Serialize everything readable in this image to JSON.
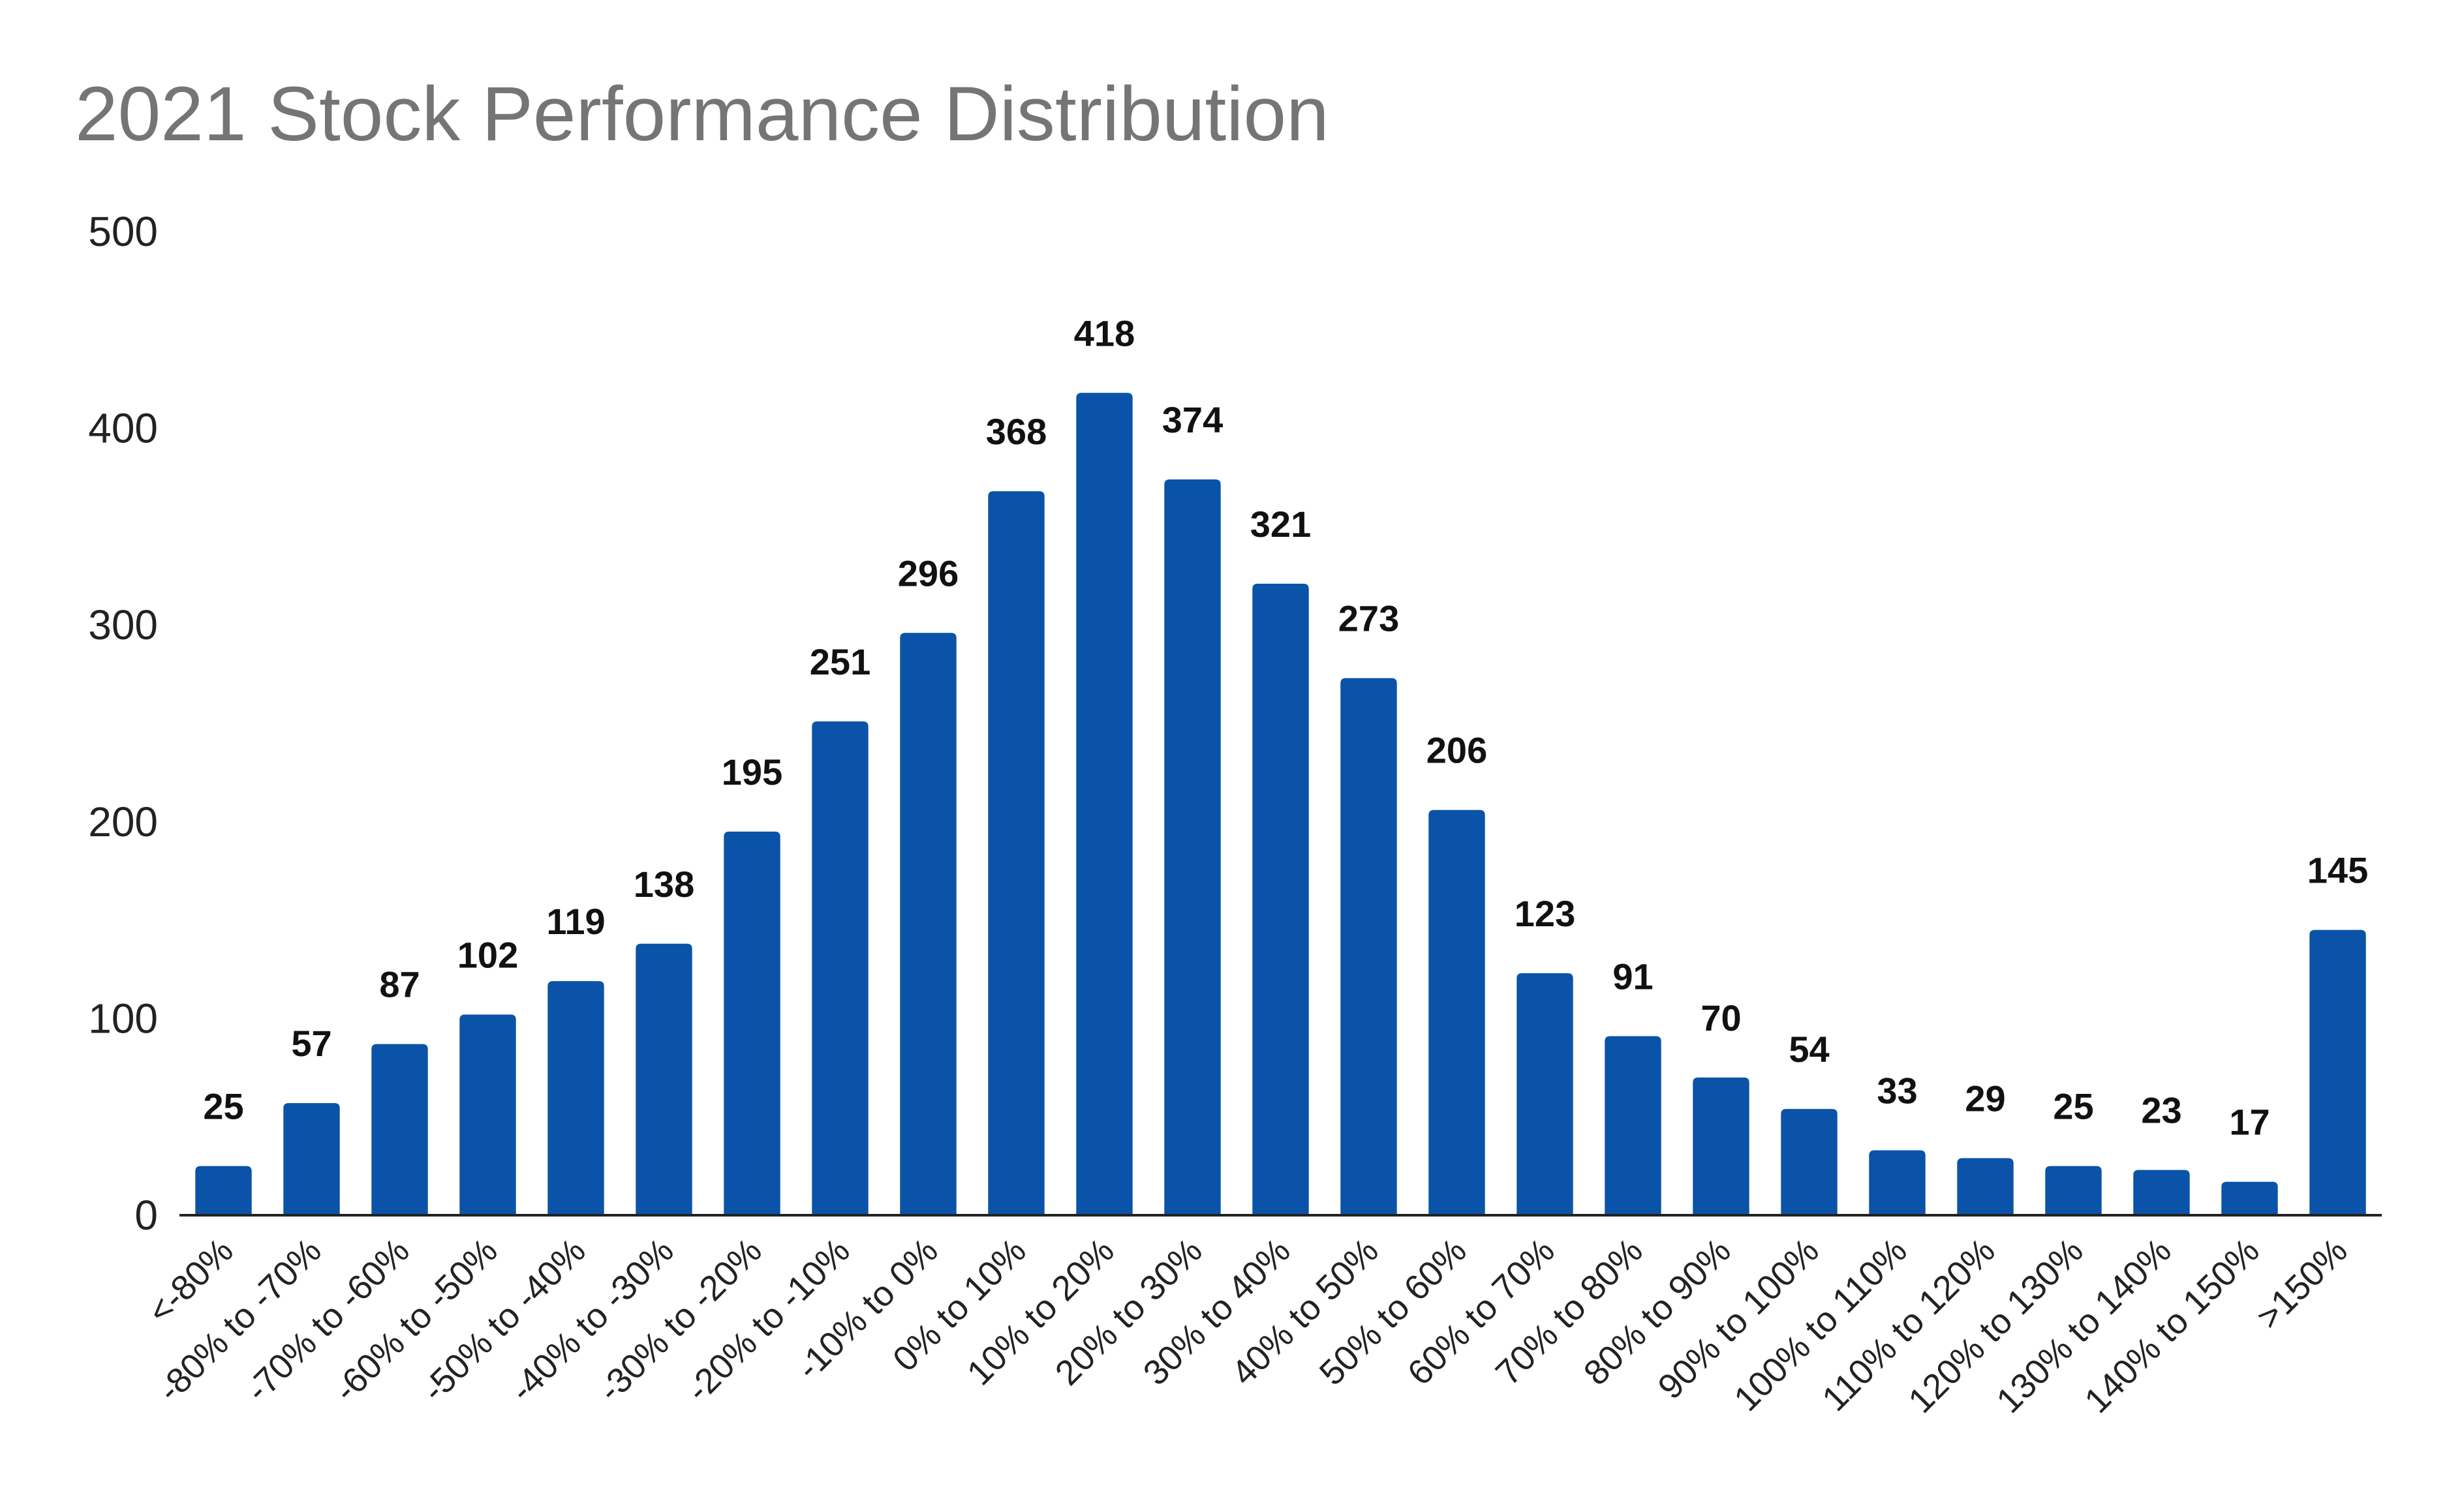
{
  "chart_data": {
    "type": "bar",
    "title": "2021 Stock Performance Distribution",
    "xlabel": "",
    "ylabel": "",
    "ylim": [
      0,
      500
    ],
    "yticks": [
      "0",
      "100",
      "200",
      "300",
      "400",
      "500"
    ],
    "grid": false,
    "legend": "none",
    "bar_color": "#0a53a8",
    "categories": [
      "<-80%",
      "-80% to -70%",
      "-70% to -60%",
      "-60% to -50%",
      "-50% to -40%",
      "-40% to -30%",
      "-30% to -20%",
      "-20% to -10%",
      "-10% to 0%",
      "0% to 10%",
      "10% to 20%",
      "20% to 30%",
      "30% to 40%",
      "40% to 50%",
      "50% to 60%",
      "60% to 70%",
      "70% to 80%",
      "80% to 90%",
      "90% to 100%",
      "100% to 110%",
      "110% to 120%",
      "120% to 130%",
      "130% to 140%",
      "140% to 150%",
      ">150%"
    ],
    "values": [
      25,
      57,
      87,
      102,
      119,
      138,
      195,
      251,
      296,
      368,
      418,
      374,
      321,
      273,
      206,
      123,
      91,
      70,
      54,
      33,
      29,
      25,
      23,
      17,
      145
    ],
    "data_labels": [
      "25",
      "57",
      "87",
      "102",
      "119",
      "138",
      "195",
      "251",
      "296",
      "368",
      "418",
      "374",
      "321",
      "273",
      "206",
      "123",
      "91",
      "70",
      "54",
      "33",
      "29",
      "25",
      "23",
      "17",
      "145"
    ]
  }
}
